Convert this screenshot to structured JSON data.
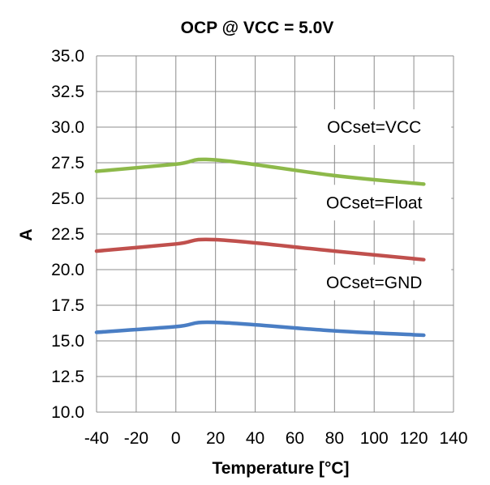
{
  "chart_data": {
    "type": "line",
    "title": "OCP @ VCC = 5.0V",
    "xlabel": "Temperature [°C]",
    "ylabel": "A",
    "xlim": [
      -40,
      140
    ],
    "ylim": [
      10.0,
      35.0
    ],
    "xticks": [
      "-40",
      "-20",
      "0",
      "20",
      "40",
      "60",
      "80",
      "100",
      "120",
      "140"
    ],
    "yticks": [
      "10.0",
      "12.5",
      "15.0",
      "17.5",
      "20.0",
      "22.5",
      "25.0",
      "27.5",
      "30.0",
      "32.5",
      "35.0"
    ],
    "grid": true,
    "legend": "none",
    "x": [
      -40,
      0,
      20,
      80,
      125
    ],
    "series": [
      {
        "name": "OCset=VCC",
        "color": "#8DB94A",
        "values": [
          26.9,
          27.4,
          27.7,
          26.6,
          26.0
        ]
      },
      {
        "name": "OCset=Float",
        "color": "#C0504D",
        "values": [
          21.3,
          21.8,
          22.1,
          21.3,
          20.7
        ]
      },
      {
        "name": "OCset=GND",
        "color": "#4A7EC4",
        "values": [
          15.6,
          16.0,
          16.3,
          15.7,
          15.4
        ]
      }
    ],
    "annotations": [
      {
        "text": "OCset=VCC",
        "x": 100,
        "y": 30.0
      },
      {
        "text": "OCset=Float",
        "x": 100,
        "y": 24.7
      },
      {
        "text": "OCset=GND",
        "x": 100,
        "y": 19.1
      }
    ]
  }
}
